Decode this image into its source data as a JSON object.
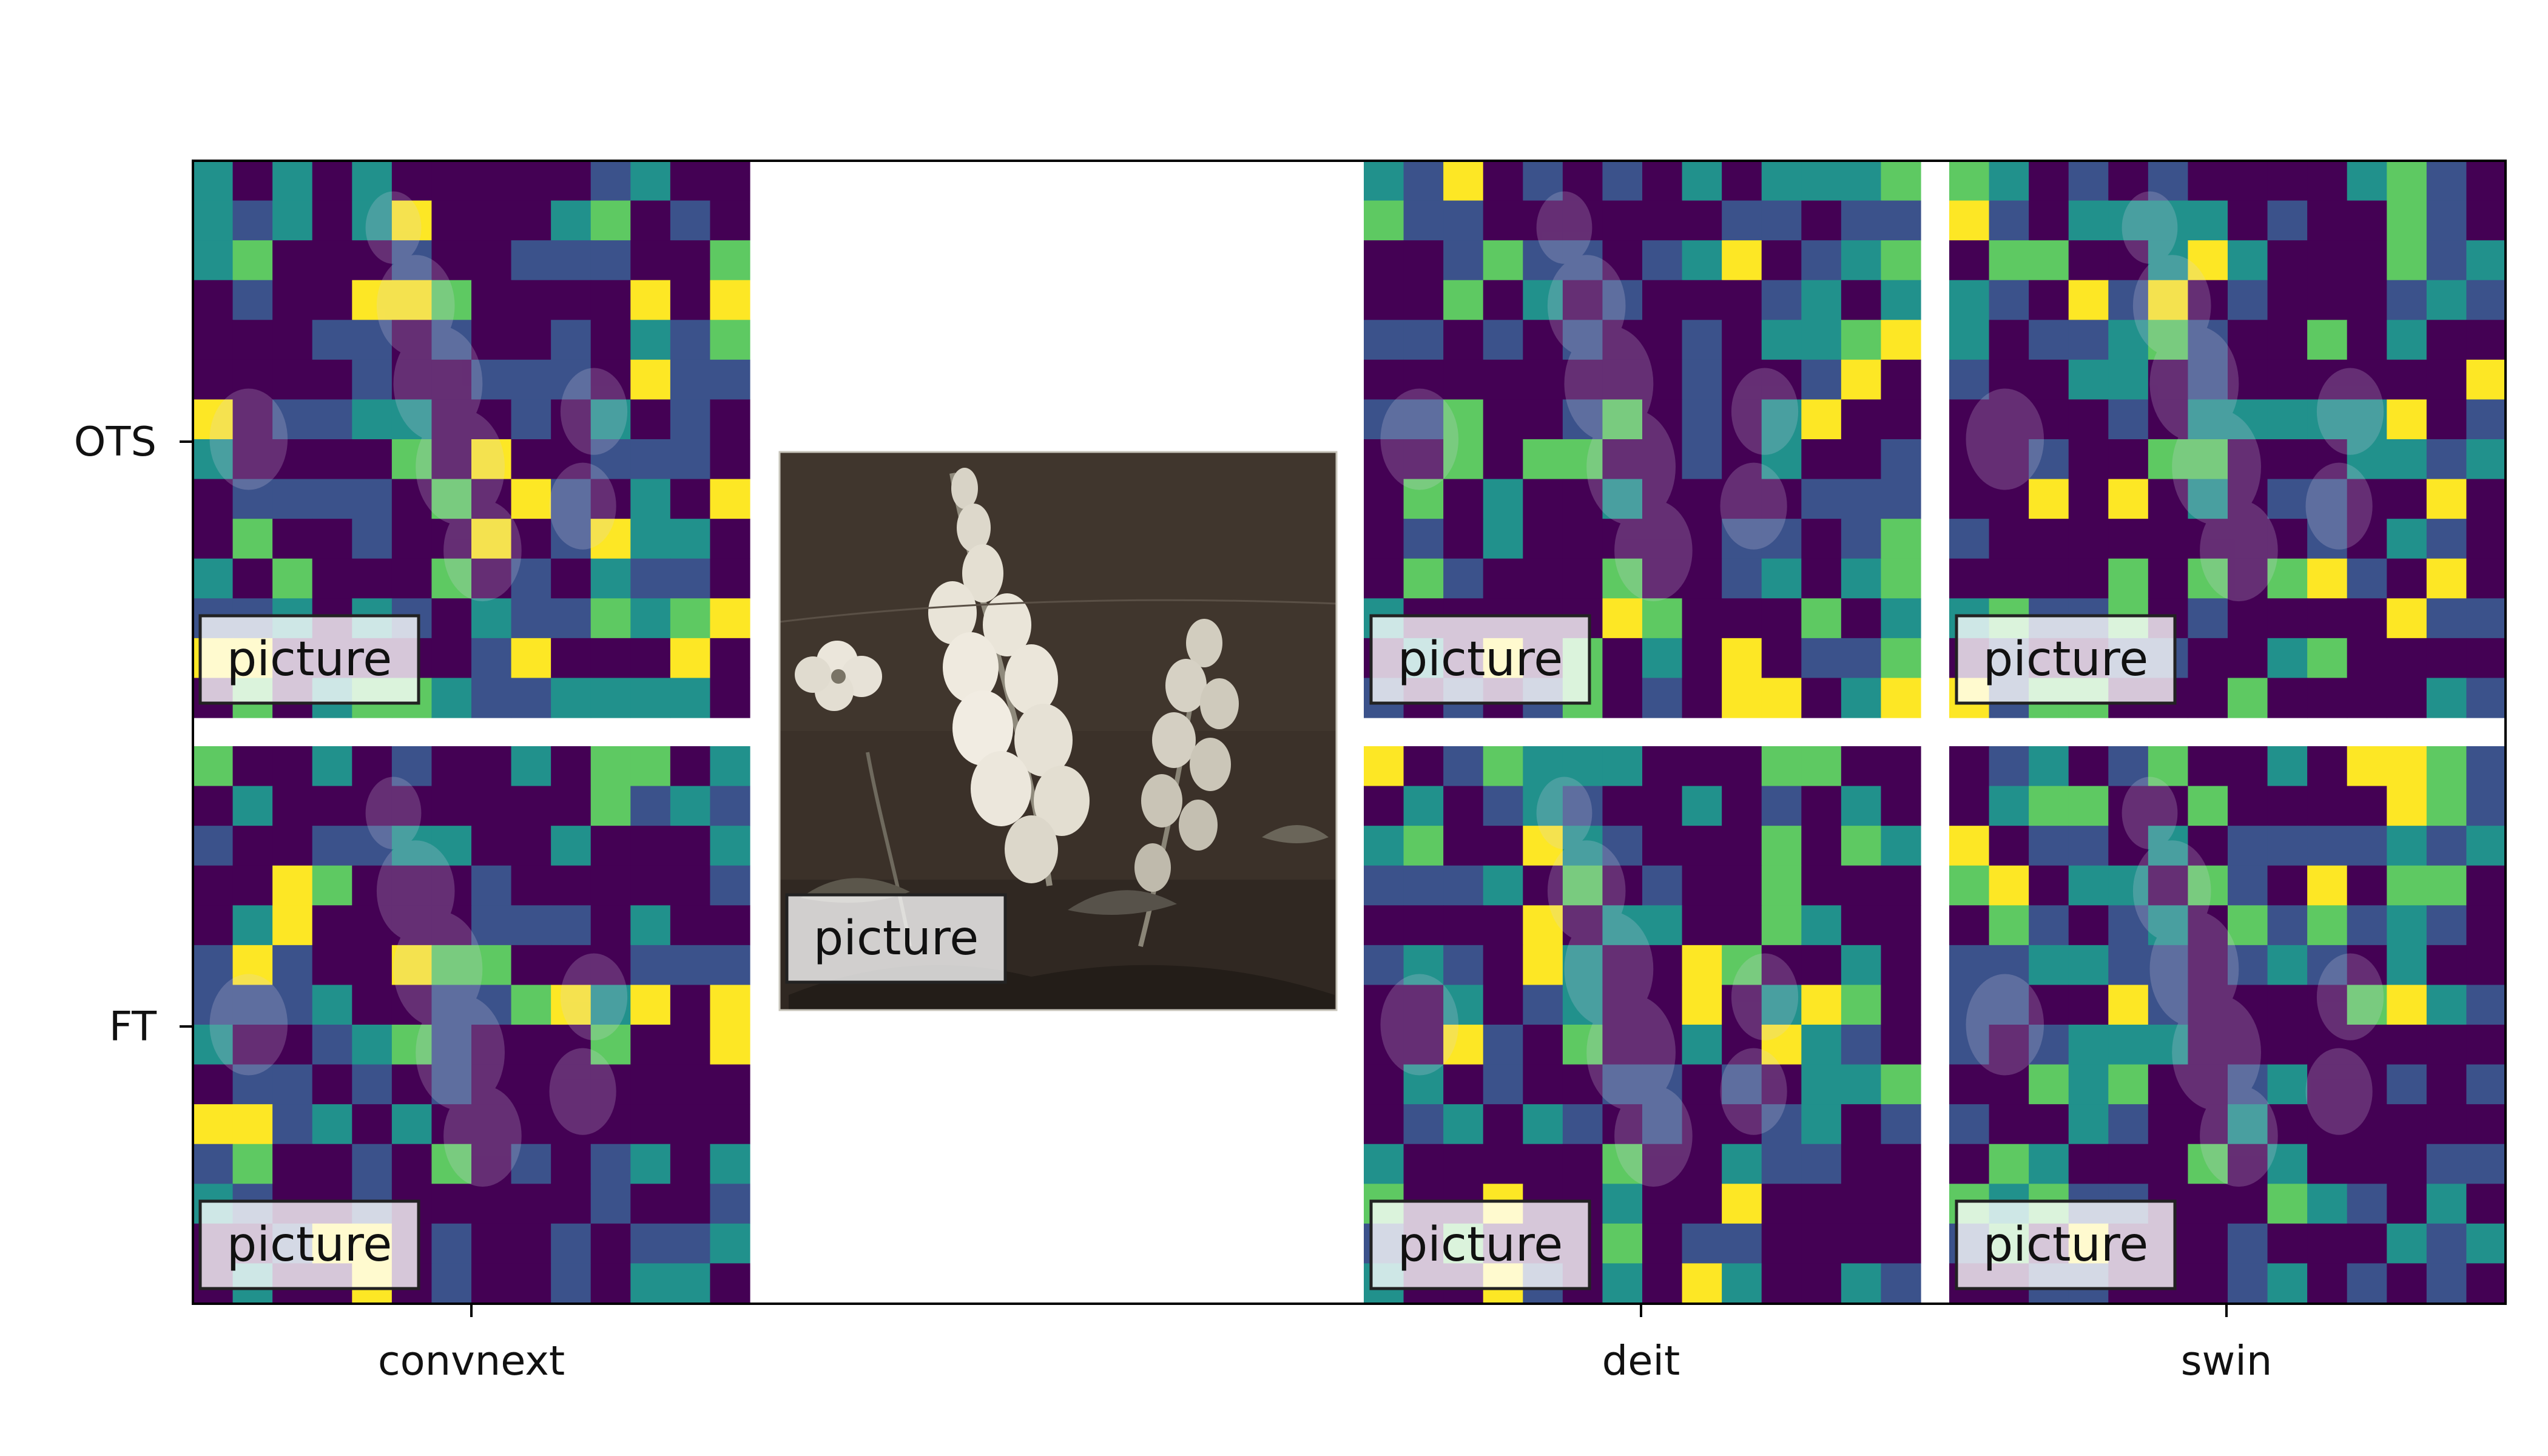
{
  "chart_data": {
    "type": "heatmap",
    "title": "",
    "rows": [
      "OTS",
      "FT"
    ],
    "columns": [
      "convnext",
      "",
      "deit",
      "swin"
    ],
    "panel_label": "picture",
    "center_image_label": "picture",
    "colormap": "viridis",
    "grid": "14x14",
    "panels": [
      {
        "row": "OTS",
        "column": "convnext",
        "label": "picture"
      },
      {
        "row": "OTS",
        "column": "deit",
        "label": "picture"
      },
      {
        "row": "OTS",
        "column": "swin",
        "label": "picture"
      },
      {
        "row": "FT",
        "column": "convnext",
        "label": "picture"
      },
      {
        "row": "FT",
        "column": "deit",
        "label": "picture"
      },
      {
        "row": "FT",
        "column": "swin",
        "label": "picture"
      }
    ]
  },
  "colors": {
    "viridis": [
      "#440154",
      "#3b528b",
      "#21918c",
      "#5ec962",
      "#fde725"
    ],
    "photo_bg": "#3a3029",
    "flower": "#e9e4d8"
  }
}
